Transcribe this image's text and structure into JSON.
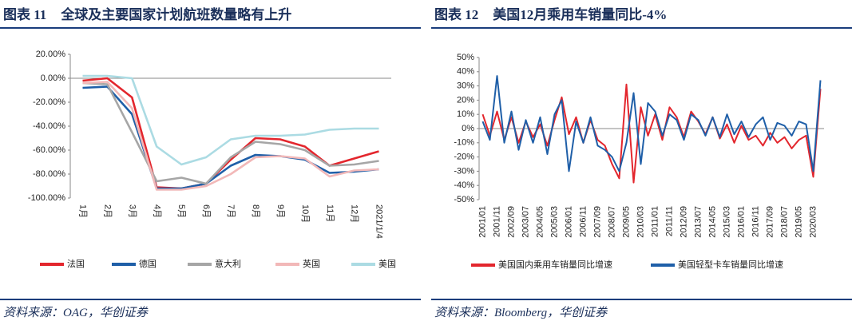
{
  "chart_data": [
    {
      "type": "line",
      "label": "图表 11",
      "title": "全球及主要国家计划航班数量略有上升",
      "source": "资料来源：OAG，华创证券",
      "categories": [
        "1月",
        "2月",
        "3月",
        "4月",
        "5月",
        "6月",
        "7月",
        "8月",
        "9月",
        "10月",
        "11月",
        "12月",
        "2021/1/4"
      ],
      "ylim": [
        -100,
        20
      ],
      "yticks": [
        {
          "value": -100,
          "label": "-100.00%"
        },
        {
          "value": -80,
          "label": "-80.00%"
        },
        {
          "value": -60,
          "label": "-60.00%"
        },
        {
          "value": -40,
          "label": "-40.00%"
        },
        {
          "value": -20,
          "label": "-20.00%"
        },
        {
          "value": 0,
          "label": "0.00%"
        },
        {
          "value": 20,
          "label": "20.00%"
        }
      ],
      "legend": "bottom",
      "series": [
        {
          "name": "法国",
          "color": "#e3262d",
          "values": [
            -2,
            0,
            -16,
            -91,
            -92,
            -88,
            -68,
            -50,
            -51,
            -57,
            -73,
            -67,
            -61
          ]
        },
        {
          "name": "德国",
          "color": "#1f5fa8",
          "values": [
            -8,
            -7,
            -30,
            -92,
            -92,
            -88,
            -73,
            -64,
            -65,
            -68,
            -79,
            -78,
            -76
          ]
        },
        {
          "name": "意大利",
          "color": "#a6a6a6",
          "values": [
            -4,
            -5,
            -45,
            -86,
            -83,
            -88,
            -66,
            -53,
            -55,
            -60,
            -73,
            -72,
            -69
          ]
        },
        {
          "name": "英国",
          "color": "#f2b8b8",
          "values": [
            -4,
            -3,
            -25,
            -93,
            -93,
            -90,
            -80,
            -66,
            -65,
            -67,
            -82,
            -77,
            -76
          ]
        },
        {
          "name": "美国",
          "color": "#abdbe3",
          "values": [
            2,
            2,
            0,
            -57,
            -72,
            -66,
            -51,
            -48,
            -48,
            -47,
            -43,
            -42,
            -42
          ]
        }
      ]
    },
    {
      "type": "line",
      "label": "图表 12",
      "title": "美国12月乘用车销量同比-4%",
      "source": "资料来源：Bloomberg，华创证券",
      "categories": [
        "2001/01",
        null,
        "2001/11",
        null,
        "2002/09",
        null,
        "2003/07",
        null,
        "2004/05",
        null,
        "2005/03",
        null,
        "2006/01",
        null,
        "2006/11",
        null,
        "2007/09",
        null,
        "2008/07",
        null,
        "2009/05",
        null,
        "2010/03",
        null,
        "2011/01",
        null,
        "2011/11",
        null,
        "2012/09",
        null,
        "2013/07",
        null,
        "2014/05",
        null,
        "2015/03",
        null,
        "2016/01",
        null,
        "2016/11",
        null,
        "2017/09",
        null,
        "2018/07",
        null,
        "2019/05",
        null,
        "2020/03",
        null
      ],
      "ylim": [
        -50,
        50
      ],
      "yticks": [
        {
          "value": -50,
          "label": "-50%"
        },
        {
          "value": -40,
          "label": "-40%"
        },
        {
          "value": -30,
          "label": "-30%"
        },
        {
          "value": -20,
          "label": "-20%"
        },
        {
          "value": -10,
          "label": "-10%"
        },
        {
          "value": 0,
          "label": "0%"
        },
        {
          "value": 10,
          "label": "10%"
        },
        {
          "value": 20,
          "label": "20%"
        },
        {
          "value": 30,
          "label": "30%"
        },
        {
          "value": 40,
          "label": "40%"
        },
        {
          "value": 50,
          "label": "50%"
        }
      ],
      "legend": "bottom",
      "series": [
        {
          "name": "美国国内乘用车销量同比增速",
          "color": "#e3262d",
          "values": [
            10,
            -5,
            12,
            -8,
            8,
            -10,
            5,
            -6,
            3,
            -12,
            6,
            22,
            -4,
            8,
            -10,
            6,
            -8,
            -12,
            -25,
            -35,
            31,
            -38,
            15,
            -5,
            10,
            -8,
            15,
            8,
            -6,
            12,
            5,
            -4,
            8,
            -7,
            3,
            -10,
            2,
            -8,
            -5,
            -12,
            -3,
            -10,
            -6,
            -14,
            -8,
            -5,
            -34,
            28
          ]
        },
        {
          "name": "美国轻型卡车销量同比增速",
          "color": "#1f5fa8",
          "values": [
            5,
            -8,
            37,
            -10,
            12,
            -15,
            6,
            -10,
            8,
            -18,
            10,
            20,
            -30,
            5,
            -10,
            8,
            -12,
            -15,
            -20,
            -30,
            -10,
            25,
            -25,
            18,
            12,
            -5,
            10,
            6,
            -8,
            10,
            6,
            -5,
            8,
            -6,
            10,
            -4,
            5,
            -6,
            3,
            8,
            -8,
            4,
            2,
            -5,
            5,
            3,
            -30,
            34
          ]
        }
      ]
    }
  ]
}
